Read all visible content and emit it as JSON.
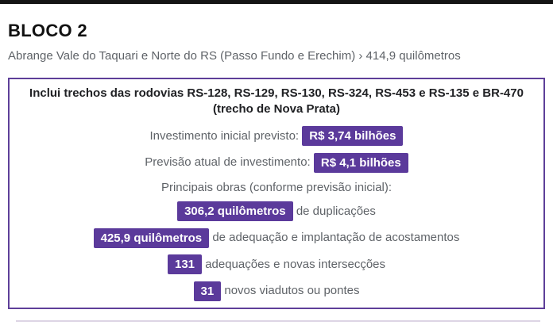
{
  "page": {
    "title": "BLOCO 2",
    "subtitle": "Abrange Vale do Taquari e Norte do RS (Passo Fundo e Erechim) › 414,9 quilômetros"
  },
  "panel": {
    "heading_line1": "Inclui trechos das rodovias RS-128, RS-129, RS-130, RS-324, RS-453 e RS-135 e BR-470",
    "heading_line2": "(trecho de Nova Prata)",
    "investments": [
      {
        "label": "Investimento inicial previsto: ",
        "value": "R$ 3,74 bilhões"
      },
      {
        "label": "Previsão atual de investimento: ",
        "value": "R$ 4,1 bilhões"
      }
    ],
    "works_intro": "Principais obras (conforme previsão inicial):",
    "works": [
      {
        "value": "306,2 quilômetros",
        "label": " de duplicações"
      },
      {
        "value": "425,9 quilômetros",
        "label": " de adequação e implantação de acostamentos"
      },
      {
        "value": "131",
        "label": " adequações e novas intersecções"
      },
      {
        "value": "31",
        "label": " novos viadutos ou pontes"
      }
    ]
  },
  "colors": {
    "accent_purple": "#5b3a9b",
    "panel_border_purple": "#5e3f99",
    "top_bar_black": "#141414",
    "body_text_gray": "#5f6368",
    "heading_text_dark": "#202124"
  }
}
